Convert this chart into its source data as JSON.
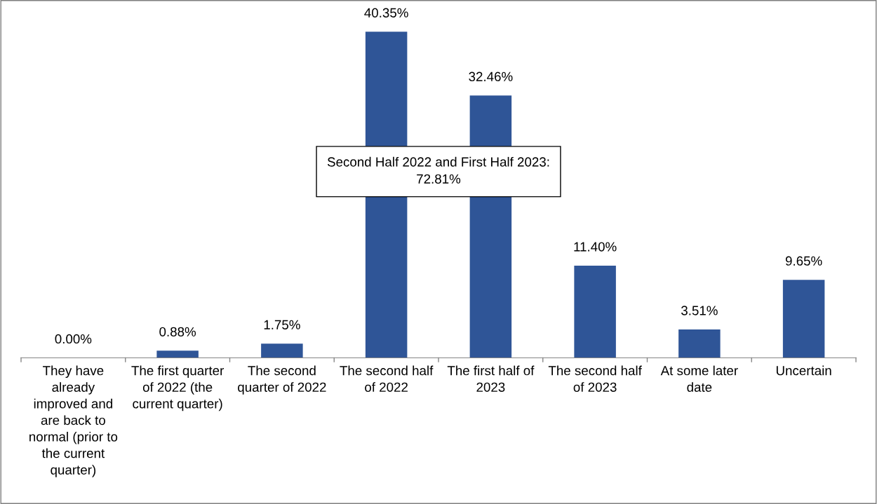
{
  "chart_data": {
    "type": "bar",
    "categories": [
      "They have\nalready\nimproved and\nare back to\nnormal (prior to\nthe current\nquarter)",
      "The first quarter\nof 2022 (the\ncurrent quarter)",
      "The second\nquarter of 2022",
      "The second half\nof 2022",
      "The first half of\n2023",
      "The second half\nof 2023",
      "At some later\ndate",
      "Uncertain"
    ],
    "values": [
      0.0,
      0.88,
      1.75,
      40.35,
      32.46,
      11.4,
      3.51,
      9.65
    ],
    "value_labels": [
      "0.00%",
      "0.88%",
      "1.75%",
      "40.35%",
      "32.46%",
      "11.40%",
      "3.51%",
      "9.65%"
    ],
    "color": "#2f5597",
    "annotations": [
      "Second Half 2022 and First Half 2023:\n72.81%"
    ],
    "grid": false,
    "legend": false
  }
}
